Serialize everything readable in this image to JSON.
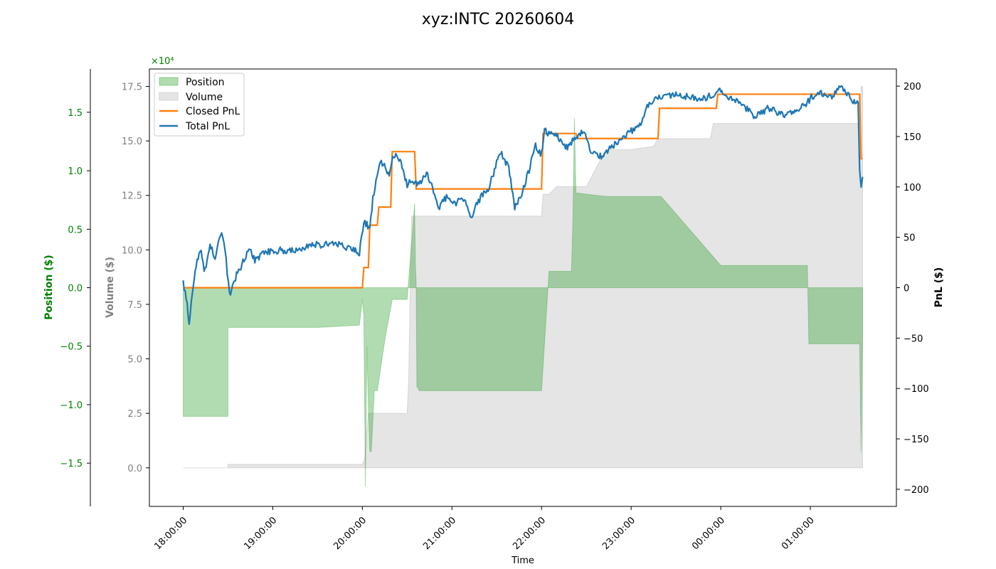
{
  "chart_data": {
    "type": "line",
    "title": "xyz:INTC 20260604",
    "xlabel": "Time",
    "x_ticks": [
      "18:00:00",
      "19:00:00",
      "20:00:00",
      "21:00:00",
      "22:00:00",
      "23:00:00",
      "00:00:00",
      "01:00:00"
    ],
    "x_range": [
      "18:00",
      "01:35"
    ],
    "axes": {
      "position": {
        "label": "Position ($)",
        "color": "#008000",
        "ylim": [
          -1.87,
          1.87
        ],
        "ticks": [
          -1.5,
          -1.0,
          -0.5,
          0.0,
          0.5,
          1.0,
          1.5
        ],
        "ticks_text": [
          "−1.5",
          "−1.0",
          "−0.5",
          "0.0",
          "0.5",
          "1.0",
          "1.5"
        ],
        "multiplier": "×10⁴"
      },
      "volume": {
        "label": "Volume ($)",
        "color": "#808080",
        "ylim": [
          -1.77,
          18.3
        ],
        "ticks": [
          0.0,
          2.5,
          5.0,
          7.5,
          10.0,
          12.5,
          15.0,
          17.5
        ],
        "ticks_text": [
          "0.0",
          "2.5",
          "5.0",
          "7.5",
          "10.0",
          "12.5",
          "15.0",
          "17.5"
        ],
        "multiplier": "×10⁴"
      },
      "pnl": {
        "label": "PnL ($)",
        "color": "#000000",
        "ylim": [
          -217,
          217
        ],
        "ticks": [
          -200,
          -150,
          -100,
          -50,
          0,
          50,
          100,
          150,
          200
        ],
        "ticks_text": [
          "−200",
          "−150",
          "−100",
          "−50",
          "0",
          "50",
          "100",
          "150",
          "200"
        ]
      }
    },
    "legend": {
      "placement": "top-left",
      "entries": [
        "Position",
        "Volume",
        "Closed PnL",
        "Total PnL"
      ]
    },
    "colors": {
      "position_fill": "#2ca02c",
      "volume_fill": "#d3d3d3",
      "closed_pnl": "#ff7f0e",
      "total_pnl": "#1f77b4"
    },
    "series": [
      {
        "name": "Position",
        "kind": "area",
        "axis": "position",
        "x_minutes": [
          0,
          0,
          30,
          30,
          90,
          118,
          120,
          121,
          122,
          123,
          124,
          125,
          126,
          128,
          130,
          135,
          140,
          150,
          155,
          155.5,
          156,
          156.5,
          157,
          158,
          200,
          240,
          245,
          260,
          261,
          262,
          263,
          270,
          283,
          320,
          360,
          418,
          419,
          453,
          454,
          455
        ],
        "values": [
          0,
          -1.1,
          -1.1,
          -0.34,
          -0.34,
          -0.32,
          -0.1,
          -0.25,
          -1.7,
          -0.5,
          -1.0,
          -1.4,
          -1.4,
          -0.88,
          -0.88,
          -0.45,
          -0.1,
          -0.1,
          0.72,
          0.2,
          0.05,
          -0.85,
          -0.85,
          -0.88,
          -0.88,
          -0.88,
          0.14,
          0.14,
          0.58,
          1.45,
          0.81,
          0.8,
          0.78,
          0.78,
          0.19,
          0.19,
          -0.48,
          -0.48,
          -1.41,
          -0.38
        ]
      },
      {
        "name": "Volume",
        "kind": "area",
        "axis": "volume",
        "x_minutes": [
          0,
          30,
          30,
          120,
          121,
          122,
          123,
          124,
          150,
          151,
          152,
          153,
          200,
          240,
          241,
          245,
          250,
          270,
          283,
          284,
          300,
          315,
          318,
          353,
          355,
          453,
          454,
          455
        ],
        "values": [
          0,
          0,
          0.16,
          0.16,
          0.3,
          0.6,
          1.7,
          2.5,
          2.5,
          4.0,
          8.0,
          11.55,
          11.55,
          11.55,
          12.55,
          12.55,
          12.9,
          12.9,
          14.6,
          14.6,
          14.6,
          14.75,
          15.1,
          15.1,
          15.8,
          15.8,
          17.5,
          17.5
        ]
      },
      {
        "name": "Closed PnL",
        "kind": "step",
        "axis": "pnl",
        "x_minutes": [
          0,
          30,
          30,
          120,
          121,
          124,
          125,
          130,
          131,
          139,
          140,
          155,
          156,
          193,
          194,
          240,
          241,
          263,
          264,
          318,
          319,
          357,
          358,
          453,
          454,
          455
        ],
        "values": [
          0,
          0,
          0,
          0,
          20,
          20,
          62,
          62,
          80,
          80,
          135,
          135,
          98,
          98,
          98,
          98,
          153,
          153,
          148,
          148,
          178,
          178,
          192,
          192,
          128,
          128
        ]
      }
    ]
  }
}
